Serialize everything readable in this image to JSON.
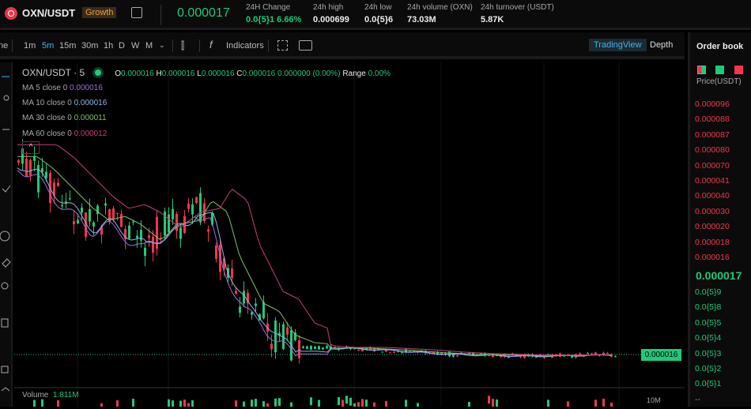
{
  "header": {
    "pair": "OXN/USDT",
    "badge": "Growth",
    "last_price": "0.000017",
    "stats": [
      {
        "label": "24H Change",
        "value": "0.0{5}1 6.66%",
        "color": "#20c978"
      },
      {
        "label": "24h high",
        "value": "0.000699"
      },
      {
        "label": "24h low",
        "value": "0.0{5}6"
      },
      {
        "label": "24h volume (OXN)",
        "value": "73.03M"
      },
      {
        "label": "24h turnover (USDT)",
        "value": "5.87K"
      }
    ]
  },
  "toolbar": {
    "cut_label": "ne",
    "intervals": [
      "1m",
      "5m",
      "15m",
      "30m",
      "1h",
      "D",
      "W",
      "M"
    ],
    "active_interval": "5m",
    "indicators": "Indicators",
    "tradingview": "TradingView",
    "depth": "Depth"
  },
  "chart": {
    "title": "OXN/USDT · 5",
    "ohlc": {
      "o": "0.000016",
      "h": "0.000016",
      "l": "0.000016",
      "c": "0.000016",
      "chg": "0.000000 (0.00%)",
      "range": "0.00%"
    },
    "ma": [
      {
        "label": "MA 5 close 0",
        "value": "0.000016",
        "color": "#9b6fd6"
      },
      {
        "label": "MA 10 close 0",
        "value": "0.000016",
        "color": "#8fb4e8"
      },
      {
        "label": "MA 30 close 0",
        "value": "0.000011",
        "color": "#7fc06a"
      },
      {
        "label": "MA 60 close 0",
        "value": "0.000012",
        "color": "#c2407f"
      }
    ],
    "price_tag": "0.000016",
    "volume_label": "Volume",
    "volume_value": "1.811M",
    "volume_axis": "10M",
    "up_color": "#20c978",
    "down_color": "#f2364c"
  },
  "orderbook": {
    "title": "Order book",
    "price_header": "Price(USDT)",
    "asks": [
      "0.000096",
      "0.000088",
      "0.000087",
      "0.000080",
      "0.000070",
      "0.000041",
      "0.000040",
      "0.000030",
      "0.000020",
      "0.000018",
      "0.000016"
    ],
    "mid": "0.000017",
    "bids": [
      "0.0{5}9",
      "0.0{5}8",
      "0.0{5}5",
      "0.0{5}4",
      "0.0{5}3",
      "0.0{5}2",
      "0.0{5}1",
      "--"
    ]
  }
}
